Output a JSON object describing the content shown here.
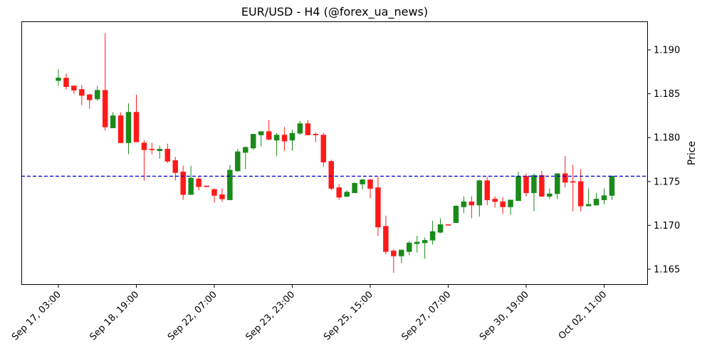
{
  "chart_data": {
    "type": "candlestick",
    "title": "EUR/USD - H4 (@forex_ua_news)",
    "xlabel": "",
    "ylabel": "Price",
    "ylim": [
      1.16321,
      1.19325
    ],
    "yticks": [
      "1.165",
      "1.170",
      "1.175",
      "1.180",
      "1.185",
      "1.190"
    ],
    "ytick_values": [
      1.165,
      1.17,
      1.175,
      1.18,
      1.185,
      1.19
    ],
    "xticks": [
      {
        "candle": 0,
        "label": "Sep 17, 03:00"
      },
      {
        "candle": 10,
        "label": "Sep 18, 19:00"
      },
      {
        "candle": 20,
        "label": "Sep 22, 07:00"
      },
      {
        "candle": 30,
        "label": "Sep 23, 23:00"
      },
      {
        "candle": 40,
        "label": "Sep 25, 15:00"
      },
      {
        "candle": 50,
        "label": "Sep 27, 07:00"
      },
      {
        "candle": 60,
        "label": "Sep 30, 19:00"
      },
      {
        "candle": 70,
        "label": "Oct 02, 11:00"
      }
    ],
    "hline": {
      "value": 1.1756,
      "color": "#0000cc",
      "style": "dashed"
    },
    "colors": {
      "up": "#1a8a1a",
      "down": "#ff1a1a"
    },
    "ohlc_fields": [
      "open",
      "high",
      "low",
      "close"
    ],
    "candles": [
      [
        1.1865,
        1.1878,
        1.1859,
        1.1868
      ],
      [
        1.1868,
        1.1873,
        1.1855,
        1.1858
      ],
      [
        1.1859,
        1.1859,
        1.185,
        1.1854
      ],
      [
        1.1855,
        1.186,
        1.1837,
        1.1848
      ],
      [
        1.1849,
        1.185,
        1.1833,
        1.1843
      ],
      [
        1.1844,
        1.1859,
        1.1842,
        1.1854
      ],
      [
        1.1854,
        1.1919,
        1.1808,
        1.1812
      ],
      [
        1.1811,
        1.1829,
        1.1811,
        1.1825
      ],
      [
        1.1825,
        1.1829,
        1.1794,
        1.1794
      ],
      [
        1.1794,
        1.1839,
        1.1781,
        1.1829
      ],
      [
        1.1829,
        1.1849,
        1.1795,
        1.1795
      ],
      [
        1.1794,
        1.1797,
        1.1751,
        1.1786
      ],
      [
        1.1787,
        1.1794,
        1.1781,
        1.1786
      ],
      [
        1.1785,
        1.1791,
        1.1776,
        1.1787
      ],
      [
        1.1787,
        1.1793,
        1.1771,
        1.1773
      ],
      [
        1.1774,
        1.1778,
        1.1751,
        1.176
      ],
      [
        1.1761,
        1.1768,
        1.1729,
        1.1735
      ],
      [
        1.1735,
        1.1768,
        1.1735,
        1.1754
      ],
      [
        1.1753,
        1.1755,
        1.174,
        1.1744
      ],
      [
        1.1745,
        1.1745,
        1.1744,
        1.1744
      ],
      [
        1.1741,
        1.1742,
        1.1726,
        1.1734
      ],
      [
        1.1735,
        1.1742,
        1.1727,
        1.173
      ],
      [
        1.1729,
        1.1769,
        1.1729,
        1.1763
      ],
      [
        1.1762,
        1.1787,
        1.1761,
        1.1784
      ],
      [
        1.1783,
        1.179,
        1.1764,
        1.1789
      ],
      [
        1.1788,
        1.1804,
        1.1786,
        1.1804
      ],
      [
        1.1803,
        1.1807,
        1.179,
        1.1807
      ],
      [
        1.1807,
        1.182,
        1.1797,
        1.1798
      ],
      [
        1.1797,
        1.1805,
        1.1779,
        1.1803
      ],
      [
        1.1803,
        1.1812,
        1.1785,
        1.1796
      ],
      [
        1.1797,
        1.1809,
        1.1785,
        1.1805
      ],
      [
        1.1805,
        1.1819,
        1.1803,
        1.1816
      ],
      [
        1.1816,
        1.182,
        1.1803,
        1.1803
      ],
      [
        1.1804,
        1.1806,
        1.1795,
        1.1803
      ],
      [
        1.1803,
        1.1805,
        1.1767,
        1.1772
      ],
      [
        1.1773,
        1.1775,
        1.174,
        1.1742
      ],
      [
        1.1743,
        1.1747,
        1.1729,
        1.1732
      ],
      [
        1.1733,
        1.174,
        1.1732,
        1.1738
      ],
      [
        1.1737,
        1.1749,
        1.1737,
        1.1748
      ],
      [
        1.1747,
        1.1753,
        1.1741,
        1.1752
      ],
      [
        1.1752,
        1.1753,
        1.1731,
        1.1742
      ],
      [
        1.1743,
        1.1755,
        1.1688,
        1.1698
      ],
      [
        1.1699,
        1.1711,
        1.1667,
        1.167
      ],
      [
        1.1671,
        1.1673,
        1.1646,
        1.1665
      ],
      [
        1.1665,
        1.1672,
        1.1657,
        1.1672
      ],
      [
        1.167,
        1.1682,
        1.1666,
        1.168
      ],
      [
        1.1679,
        1.1688,
        1.1669,
        1.1681
      ],
      [
        1.168,
        1.1686,
        1.1662,
        1.1683
      ],
      [
        1.1683,
        1.1705,
        1.1678,
        1.1693
      ],
      [
        1.1692,
        1.1708,
        1.1691,
        1.1701
      ],
      [
        1.1701,
        1.1701,
        1.17,
        1.17
      ],
      [
        1.1703,
        1.1723,
        1.1703,
        1.1722
      ],
      [
        1.1721,
        1.1733,
        1.1714,
        1.1727
      ],
      [
        1.1727,
        1.1733,
        1.1708,
        1.1723
      ],
      [
        1.1723,
        1.1752,
        1.171,
        1.1751
      ],
      [
        1.1751,
        1.1755,
        1.1723,
        1.1729
      ],
      [
        1.173,
        1.1733,
        1.172,
        1.1727
      ],
      [
        1.1727,
        1.1732,
        1.1713,
        1.1721
      ],
      [
        1.1721,
        1.1729,
        1.1712,
        1.1729
      ],
      [
        1.1728,
        1.1761,
        1.1728,
        1.1756
      ],
      [
        1.1756,
        1.1759,
        1.1733,
        1.1737
      ],
      [
        1.1737,
        1.1759,
        1.1716,
        1.1757
      ],
      [
        1.1757,
        1.1762,
        1.1733,
        1.1733
      ],
      [
        1.1733,
        1.1742,
        1.173,
        1.1736
      ],
      [
        1.1736,
        1.1759,
        1.173,
        1.1759
      ],
      [
        1.1759,
        1.1779,
        1.1743,
        1.1749
      ],
      [
        1.175,
        1.1769,
        1.1716,
        1.1749
      ],
      [
        1.175,
        1.1764,
        1.1716,
        1.1722
      ],
      [
        1.1722,
        1.1742,
        1.1722,
        1.1724
      ],
      [
        1.1723,
        1.1737,
        1.1723,
        1.173
      ],
      [
        1.1729,
        1.1742,
        1.1724,
        1.1734
      ],
      [
        1.1734,
        1.1757,
        1.1729,
        1.1756
      ]
    ],
    "grid": false,
    "y_axis_side": "right"
  }
}
